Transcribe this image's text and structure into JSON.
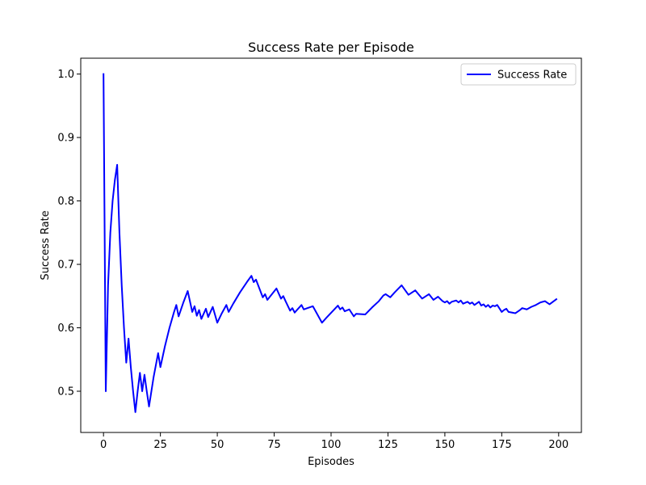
{
  "chart_data": {
    "type": "line",
    "title": "Success Rate per Episode",
    "xlabel": "Episodes",
    "ylabel": "Success Rate",
    "xlim": [
      -10,
      210
    ],
    "ylim": [
      0.435,
      1.025
    ],
    "xticks": [
      0,
      25,
      50,
      75,
      100,
      125,
      150,
      175,
      200
    ],
    "yticks": [
      0.5,
      0.6,
      0.7,
      0.8,
      0.9,
      1.0
    ],
    "ytick_labels": [
      "0.5",
      "0.6",
      "0.7",
      "0.8",
      "0.9",
      "1.0"
    ],
    "grid": false,
    "legend_position": "upper right",
    "series": [
      {
        "name": "Success Rate",
        "color": "#0000ff",
        "x": [
          0,
          1,
          2,
          3,
          4,
          5,
          6,
          7,
          8,
          9,
          10,
          11,
          12,
          13,
          14,
          15,
          16,
          17,
          18,
          19,
          20,
          22,
          24,
          25,
          27,
          29,
          31,
          32,
          33,
          35,
          37,
          39,
          40,
          41,
          42,
          43,
          45,
          46,
          48,
          50,
          52,
          54,
          55,
          57,
          60,
          63,
          65,
          66,
          67,
          70,
          71,
          72,
          76,
          78,
          79,
          80,
          82,
          83,
          84,
          87,
          88,
          92,
          96,
          98,
          103,
          104,
          105,
          106,
          108,
          110,
          111,
          115,
          118,
          121,
          123,
          124,
          126,
          128,
          131,
          134,
          137,
          140,
          143,
          145,
          147,
          149,
          150,
          151,
          152,
          153,
          155,
          156,
          157,
          158,
          160,
          161,
          162,
          163,
          165,
          166,
          167,
          168,
          169,
          170,
          171,
          172,
          173,
          175,
          176,
          177,
          178,
          181,
          183,
          184,
          186,
          188,
          190,
          192,
          194,
          196,
          199
        ],
        "y": [
          1.0,
          0.5,
          0.667,
          0.75,
          0.8,
          0.833,
          0.857,
          0.75,
          0.667,
          0.6,
          0.545,
          0.583,
          0.538,
          0.5,
          0.467,
          0.5,
          0.529,
          0.5,
          0.526,
          0.5,
          0.476,
          0.522,
          0.56,
          0.538,
          0.571,
          0.6,
          0.625,
          0.636,
          0.618,
          0.639,
          0.658,
          0.625,
          0.634,
          0.619,
          0.628,
          0.614,
          0.63,
          0.617,
          0.633,
          0.608,
          0.623,
          0.636,
          0.625,
          0.638,
          0.656,
          0.672,
          0.682,
          0.672,
          0.676,
          0.648,
          0.653,
          0.644,
          0.662,
          0.646,
          0.65,
          0.642,
          0.627,
          0.631,
          0.624,
          0.636,
          0.629,
          0.634,
          0.608,
          0.616,
          0.635,
          0.629,
          0.632,
          0.626,
          0.629,
          0.618,
          0.622,
          0.621,
          0.632,
          0.642,
          0.651,
          0.653,
          0.648,
          0.656,
          0.667,
          0.652,
          0.659,
          0.646,
          0.653,
          0.644,
          0.649,
          0.642,
          0.64,
          0.642,
          0.638,
          0.641,
          0.643,
          0.64,
          0.643,
          0.638,
          0.641,
          0.638,
          0.64,
          0.636,
          0.641,
          0.635,
          0.637,
          0.633,
          0.636,
          0.632,
          0.635,
          0.634,
          0.636,
          0.625,
          0.628,
          0.63,
          0.625,
          0.623,
          0.628,
          0.631,
          0.629,
          0.633,
          0.636,
          0.64,
          0.642,
          0.637,
          0.645
        ]
      }
    ]
  }
}
